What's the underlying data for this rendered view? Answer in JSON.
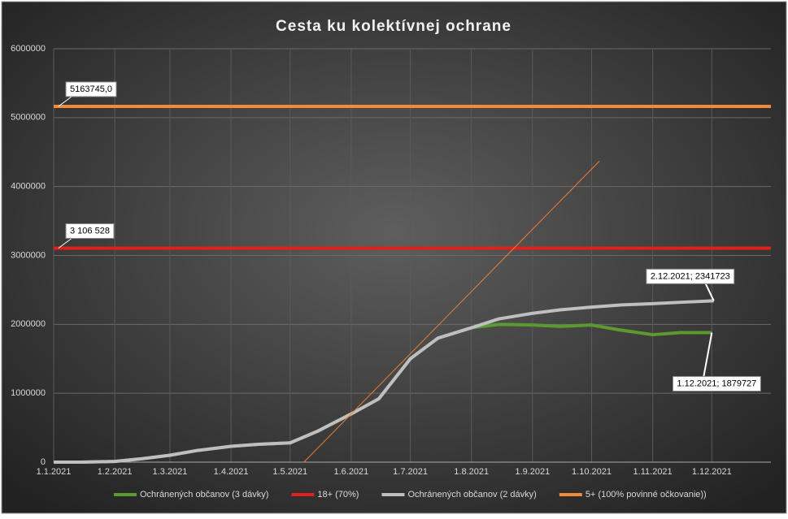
{
  "chart_data": {
    "type": "line",
    "title": "Cesta ku kolektívnej ochrane",
    "xlim": [
      "1.1.2021",
      "31.12.2021"
    ],
    "xticks": [
      "1.1.2021",
      "1.2.2021",
      "1.3.2021",
      "1.4.2021",
      "1.5.2021",
      "1.6.2021",
      "1.7.2021",
      "1.8.2021",
      "1.9.2021",
      "1.10.2021",
      "1.11.2021",
      "1.12.2021"
    ],
    "ylim": [
      0,
      6000000
    ],
    "yticks": [
      0,
      1000000,
      2000000,
      3000000,
      4000000,
      5000000,
      6000000
    ],
    "grid": true,
    "legend": "bottom",
    "series": [
      {
        "name": "Ochránených občanov (3 dávky)",
        "color": "#5b9a2e",
        "x": [
          "1.1.2021",
          "15.1.2021",
          "1.2.2021",
          "15.2.2021",
          "1.3.2021",
          "15.3.2021",
          "1.4.2021",
          "15.4.2021",
          "1.5.2021",
          "15.5.2021",
          "1.6.2021",
          "15.6.2021",
          "1.7.2021",
          "15.7.2021",
          "1.8.2021",
          "15.8.2021",
          "1.9.2021",
          "15.9.2021",
          "1.10.2021",
          "15.10.2021",
          "1.11.2021",
          "15.11.2021",
          "1.12.2021"
        ],
        "values": [
          0,
          0,
          10000,
          50000,
          100000,
          170000,
          230000,
          260000,
          280000,
          450000,
          700000,
          920000,
          1500000,
          1800000,
          1950000,
          2000000,
          1990000,
          1970000,
          1990000,
          1920000,
          1850000,
          1880000,
          1879727
        ]
      },
      {
        "name": "18+ (70%)",
        "color": "#e0201b",
        "x": [
          "1.1.2021",
          "31.12.2021"
        ],
        "values": [
          3106528,
          3106528
        ],
        "value_labels": [
          "3 106 528",
          null
        ]
      },
      {
        "name": "Ochránených občanov (2 dávky)",
        "color": "#bfbfbf",
        "x": [
          "1.1.2021",
          "15.1.2021",
          "1.2.2021",
          "15.2.2021",
          "1.3.2021",
          "15.3.2021",
          "1.4.2021",
          "15.4.2021",
          "1.5.2021",
          "15.5.2021",
          "1.6.2021",
          "15.6.2021",
          "1.7.2021",
          "15.7.2021",
          "1.8.2021",
          "15.8.2021",
          "1.9.2021",
          "15.9.2021",
          "1.10.2021",
          "15.10.2021",
          "1.11.2021",
          "15.11.2021",
          "2.12.2021"
        ],
        "values": [
          0,
          0,
          10000,
          50000,
          100000,
          170000,
          230000,
          260000,
          280000,
          450000,
          700000,
          920000,
          1500000,
          1800000,
          1950000,
          2080000,
          2160000,
          2210000,
          2250000,
          2280000,
          2300000,
          2320000,
          2341723
        ]
      },
      {
        "name": "5+ (100% povinné očkovanie))",
        "color": "#f08a3c",
        "x": [
          "1.1.2021",
          "31.12.2021"
        ],
        "values": [
          5163745,
          5163745
        ],
        "value_labels": [
          "5163745,0",
          null
        ]
      }
    ],
    "trendline": {
      "color": "#ed7d31",
      "x": [
        "8.5.2021",
        "5.10.2021"
      ],
      "values": [
        0,
        4370000
      ]
    },
    "annotations": [
      {
        "text": "2.12.2021; 2341723",
        "series": 2
      },
      {
        "text": "1.12.2021; 1879727",
        "series": 0
      }
    ]
  }
}
